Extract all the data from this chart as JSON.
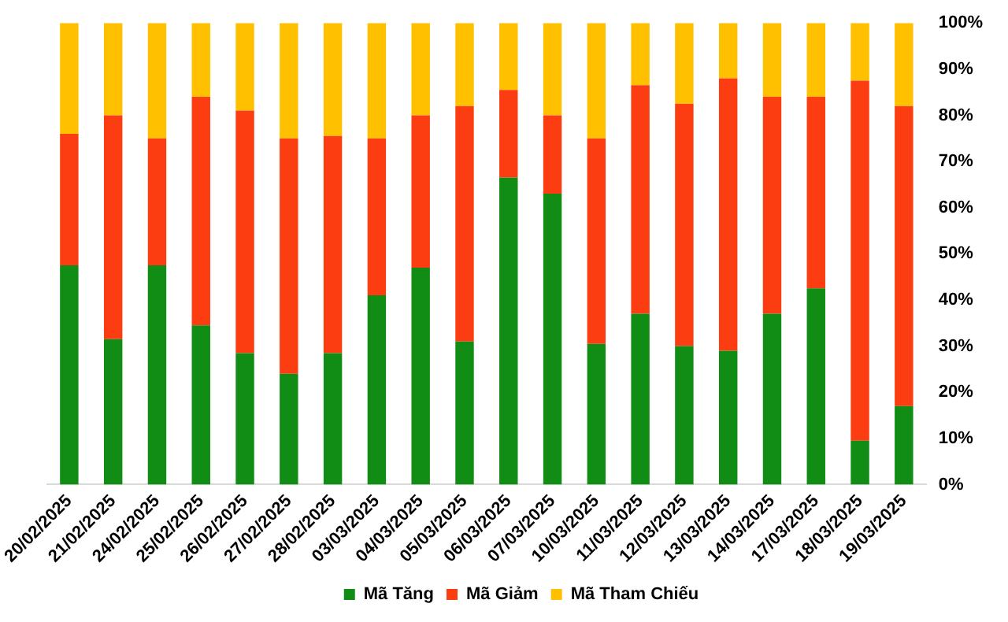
{
  "chart_data": {
    "type": "bar",
    "stacked": true,
    "categories": [
      "20/02/2025",
      "21/02/2025",
      "24/02/2025",
      "25/02/2025",
      "26/02/2025",
      "27/02/2025",
      "28/02/2025",
      "03/03/2025",
      "04/03/2025",
      "05/03/2025",
      "06/03/2025",
      "07/03/2025",
      "10/03/2025",
      "11/03/2025",
      "12/03/2025",
      "13/03/2025",
      "14/03/2025",
      "17/03/2025",
      "18/03/2025",
      "19/03/2025"
    ],
    "series": [
      {
        "name": "Mã Tăng",
        "color": "#118c14",
        "values": [
          47.5,
          31.5,
          47.5,
          34.5,
          28.5,
          24,
          28.5,
          41,
          47,
          31,
          66.5,
          63,
          30.5,
          37,
          30,
          29,
          37,
          42.5,
          9.5,
          17
        ]
      },
      {
        "name": "Mã Giảm",
        "color": "#fc3d12",
        "values": [
          28.5,
          48.5,
          27.5,
          49.5,
          52.5,
          51,
          47,
          34,
          33,
          51,
          19,
          17,
          44.5,
          49.5,
          52.5,
          59,
          47,
          41.5,
          78,
          65
        ]
      },
      {
        "name": "Mã Tham Chiếu",
        "color": "#ffc000",
        "values": [
          24,
          20,
          25,
          16,
          19,
          25,
          24.5,
          25,
          20,
          18,
          14.5,
          20,
          25,
          13.5,
          17.5,
          12,
          16,
          16,
          12.5,
          18
        ]
      }
    ],
    "ylim": [
      0,
      100
    ],
    "yticks": [
      {
        "value": 0,
        "label": "0%"
      },
      {
        "value": 10,
        "label": "10%"
      },
      {
        "value": 20,
        "label": "20%"
      },
      {
        "value": 30,
        "label": "30%"
      },
      {
        "value": 40,
        "label": "40%"
      },
      {
        "value": 50,
        "label": "50%"
      },
      {
        "value": 60,
        "label": "60%"
      },
      {
        "value": 70,
        "label": "70%"
      },
      {
        "value": 80,
        "label": "80%"
      },
      {
        "value": 90,
        "label": "90%"
      },
      {
        "value": 100,
        "label": "100%"
      }
    ],
    "grid": false,
    "legend": "bottom"
  }
}
